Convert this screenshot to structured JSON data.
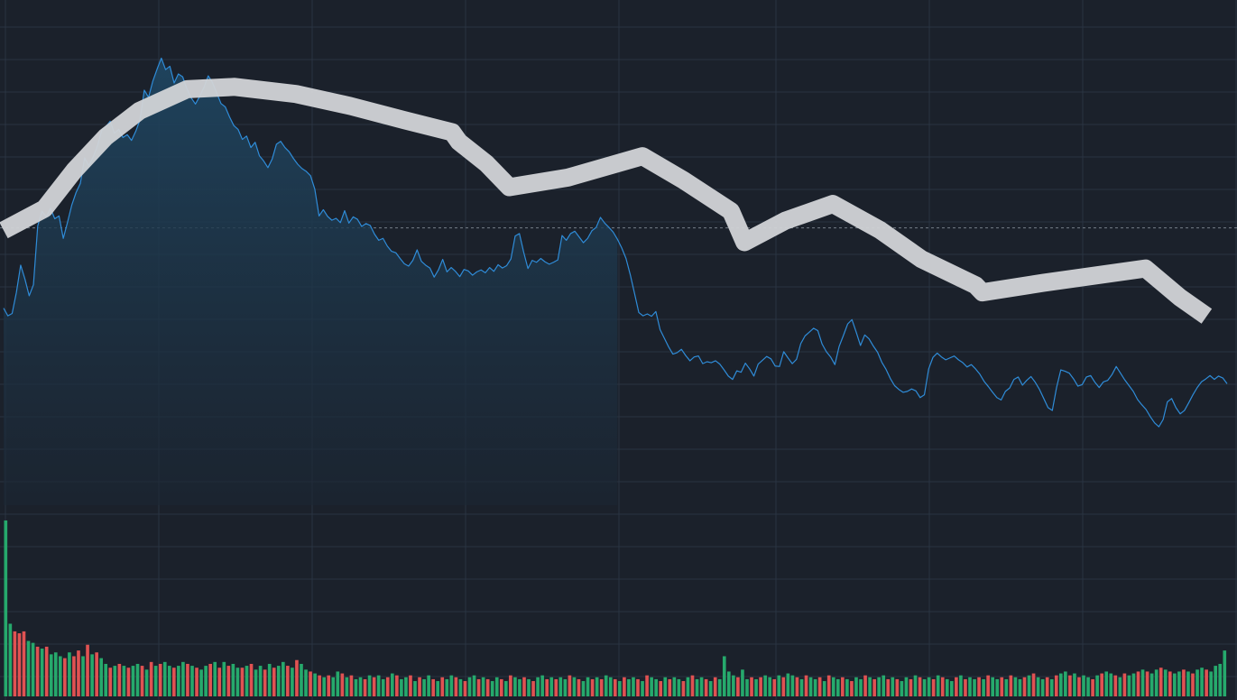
{
  "chart_data": {
    "type": "area",
    "title": "",
    "xlabel": "",
    "ylabel": "",
    "grid": true,
    "legend": "none",
    "ylim": [
      0,
      100
    ],
    "reference_line": 58,
    "colors": {
      "background": "#1b212b",
      "grid": "#2a3441",
      "line": "#2f8cd8",
      "area_top": "#1f4560",
      "area_bottom": "#1b2633",
      "up_bar": "#26a96c",
      "down_bar": "#e05252",
      "reference": "#9aa4af",
      "overlay_stroke": "#d2d4d7"
    },
    "series": [
      {
        "values": [
          41.2,
          39.6,
          40.1,
          44.5,
          50.2,
          47.3,
          43.8,
          46.1,
          58.4,
          61.5,
          60.3,
          62.1,
          59.9,
          60.5,
          55.8,
          59.2,
          62.8,
          65.4,
          67.3,
          72.6,
          71.0,
          72.8,
          75.1,
          78.4,
          79.2,
          80.3,
          77.8,
          78.6,
          76.9,
          77.5,
          76.3,
          78.2,
          80.6,
          86.8,
          85.3,
          88.7,
          91.2,
          93.5,
          91.1,
          91.8,
          88.3,
          90.2,
          89.6,
          87.1,
          85.2,
          83.9,
          85.5,
          87.4,
          89.8,
          88.4,
          86.2,
          84.0,
          83.3,
          81.2,
          79.4,
          78.6,
          76.5,
          77.2,
          74.8,
          75.9,
          73.1,
          72.0,
          70.6,
          72.4,
          75.5,
          76.1,
          74.8,
          73.9,
          72.5,
          71.3,
          70.4,
          69.8,
          68.9,
          66.1,
          60.5,
          61.8,
          60.4,
          59.6,
          60.0,
          59.1,
          61.6,
          59.0,
          60.3,
          59.8,
          58.3,
          58.9,
          58.5,
          56.7,
          55.4,
          55.8,
          54.2,
          53.1,
          52.8,
          51.6,
          50.5,
          50.0,
          51.2,
          53.4,
          51.0,
          50.2,
          49.6,
          47.7,
          49.2,
          51.4,
          48.8,
          49.7,
          48.9,
          47.8,
          49.3,
          49.0,
          48.1,
          48.8,
          49.2,
          48.6,
          49.7,
          48.9,
          50.3,
          49.6,
          50.1,
          51.5,
          56.3,
          56.8,
          52.9,
          49.5,
          51.2,
          50.8,
          51.6,
          50.9,
          50.4,
          50.8,
          51.3,
          56.4,
          55.4,
          56.8,
          57.3,
          56.1,
          54.9,
          55.8,
          57.4,
          58.1,
          60.2,
          59.0,
          58.1,
          57.1,
          55.6,
          53.8,
          51.6,
          48.2,
          44.3,
          40.3,
          39.6,
          40.0,
          39.5,
          40.5,
          36.7,
          34.9,
          33.1,
          31.6,
          31.9,
          32.6,
          31.3,
          30.2,
          31.0,
          31.2,
          29.6,
          30.0,
          29.8,
          30.2,
          29.5,
          28.3,
          27.0,
          26.3,
          28.1,
          27.8,
          29.7,
          28.5,
          27.0,
          29.5,
          30.3,
          31.1,
          30.6,
          29.1,
          29.0,
          32.1,
          30.8,
          29.6,
          30.5,
          33.8,
          35.4,
          36.2,
          37.0,
          36.5,
          33.7,
          32.1,
          31.0,
          29.4,
          33.2,
          35.5,
          37.9,
          38.8,
          36.2,
          33.4,
          35.6,
          34.8,
          33.3,
          32.0,
          29.9,
          28.4,
          26.5,
          25.0,
          24.2,
          23.6,
          23.8,
          24.3,
          23.9,
          22.5,
          23.1,
          28.5,
          30.9,
          31.8,
          31.0,
          30.4,
          30.8,
          31.2,
          30.4,
          29.8,
          28.9,
          29.4,
          28.5,
          27.4,
          25.9,
          24.8,
          23.6,
          22.5,
          22.0,
          23.8,
          24.5,
          26.3,
          26.8,
          25.1,
          26.1,
          26.9,
          25.7,
          24.2,
          22.3,
          20.4,
          19.8,
          24.6,
          28.3,
          28.0,
          27.6,
          26.4,
          24.9,
          25.2,
          26.8,
          27.1,
          25.7,
          24.6,
          25.8,
          26.1,
          27.3,
          29.0,
          27.6,
          26.2,
          25.0,
          23.8,
          22.1,
          21.0,
          20.0,
          18.5,
          17.2,
          16.4,
          17.9,
          21.6,
          22.3,
          20.4,
          19.1,
          19.8,
          21.4,
          23.1,
          24.6,
          25.8,
          26.4,
          27.1,
          26.3,
          27.0,
          26.6,
          25.4
        ]
      }
    ],
    "volume": {
      "values": [
        92,
        38,
        34,
        33,
        34,
        29,
        28,
        26,
        25,
        26,
        22,
        23,
        21,
        20,
        23,
        21,
        24,
        21,
        27,
        22,
        23,
        20,
        17,
        15,
        16,
        17,
        16,
        15,
        16,
        17,
        16,
        14,
        18,
        16,
        17,
        18,
        16,
        15,
        16,
        18,
        17,
        16,
        15,
        14,
        16,
        17,
        18,
        15,
        18,
        16,
        17,
        15,
        15,
        16,
        17,
        14,
        16,
        14,
        17,
        15,
        16,
        18,
        16,
        15,
        19,
        17,
        14,
        13,
        12,
        11,
        10,
        11,
        10,
        13,
        12,
        10,
        11,
        9,
        10,
        9,
        11,
        10,
        11,
        9,
        10,
        12,
        11,
        9,
        10,
        11,
        8,
        10,
        9,
        11,
        9,
        8,
        10,
        9,
        11,
        10,
        9,
        8,
        10,
        11,
        9,
        10,
        9,
        8,
        10,
        9,
        8,
        11,
        10,
        9,
        10,
        9,
        8,
        10,
        11,
        9,
        10,
        9,
        10,
        9,
        11,
        10,
        9,
        8,
        10,
        9,
        10,
        9,
        11,
        10,
        9,
        8,
        10,
        9,
        10,
        9,
        8,
        11,
        10,
        9,
        8,
        10,
        9,
        10,
        9,
        8,
        10,
        11,
        9,
        10,
        9,
        8,
        10,
        9,
        21,
        13,
        11,
        10,
        14,
        9,
        10,
        9,
        10,
        11,
        10,
        9,
        11,
        10,
        12,
        11,
        10,
        9,
        11,
        10,
        9,
        10,
        8,
        11,
        10,
        9,
        10,
        9,
        8,
        10,
        9,
        11,
        10,
        9,
        10,
        11,
        9,
        10,
        9,
        8,
        10,
        9,
        11,
        10,
        9,
        10,
        9,
        11,
        10,
        9,
        8,
        10,
        11,
        9,
        10,
        9,
        10,
        9,
        11,
        10,
        9,
        10,
        9,
        11,
        10,
        9,
        10,
        11,
        12,
        10,
        9,
        10,
        9,
        11,
        12,
        13,
        11,
        12,
        10,
        11,
        10,
        9,
        11,
        12,
        13,
        12,
        11,
        10,
        12,
        11,
        12,
        13,
        14,
        13,
        12,
        14,
        15,
        14,
        13,
        12,
        13,
        14,
        13,
        12,
        14,
        15,
        14,
        13,
        16,
        17,
        24
      ],
      "direction": [
        "u",
        "u",
        "d",
        "d",
        "d",
        "u",
        "u",
        "d",
        "u",
        "d",
        "u",
        "u",
        "u",
        "d",
        "u",
        "d",
        "d",
        "u",
        "d",
        "u",
        "d",
        "u",
        "u",
        "d",
        "u",
        "d",
        "u",
        "d",
        "u",
        "u",
        "d",
        "u",
        "d",
        "u",
        "d",
        "u",
        "u",
        "d",
        "u",
        "u",
        "d",
        "u",
        "d",
        "u",
        "u",
        "d",
        "u",
        "d",
        "u",
        "d",
        "u",
        "u",
        "d",
        "u",
        "d",
        "u",
        "u",
        "d",
        "u",
        "d",
        "u",
        "u",
        "d",
        "u",
        "d",
        "u",
        "u",
        "d",
        "u",
        "d",
        "u",
        "d",
        "u",
        "u",
        "d",
        "u",
        "d",
        "u",
        "u",
        "d",
        "u",
        "d",
        "u",
        "u",
        "d",
        "u",
        "d",
        "u",
        "u",
        "d",
        "u",
        "d",
        "u",
        "u",
        "d",
        "u",
        "d",
        "u",
        "u",
        "d",
        "u",
        "d",
        "u",
        "u",
        "d",
        "u",
        "d",
        "u",
        "u",
        "d",
        "u",
        "d",
        "u",
        "u",
        "d",
        "u",
        "d",
        "u",
        "u",
        "d",
        "u",
        "d",
        "u",
        "u",
        "d",
        "u",
        "d",
        "u",
        "u",
        "d",
        "u",
        "d",
        "u",
        "u",
        "d",
        "u",
        "d",
        "u",
        "u",
        "d",
        "u",
        "d",
        "u",
        "u",
        "d",
        "u",
        "d",
        "u",
        "u",
        "d",
        "u",
        "d",
        "u",
        "u",
        "d",
        "u",
        "d",
        "u",
        "u",
        "u",
        "u",
        "d",
        "u",
        "u",
        "d",
        "u",
        "d",
        "u",
        "u",
        "d",
        "u",
        "d",
        "u",
        "u",
        "d",
        "u",
        "d",
        "u",
        "u",
        "d",
        "u",
        "d",
        "u",
        "u",
        "d",
        "u",
        "d",
        "u",
        "u",
        "d",
        "u",
        "d",
        "u",
        "u",
        "d",
        "u",
        "d",
        "u",
        "u",
        "d",
        "u",
        "d",
        "u",
        "u",
        "d",
        "u",
        "d",
        "u",
        "u",
        "d",
        "u",
        "d",
        "u",
        "u",
        "d",
        "u",
        "d",
        "u",
        "u",
        "d",
        "u",
        "d",
        "u",
        "u",
        "d",
        "u",
        "d",
        "u",
        "u",
        "d",
        "u",
        "d",
        "u",
        "u",
        "d",
        "u",
        "d",
        "u",
        "u",
        "d",
        "u",
        "d",
        "u",
        "u",
        "d",
        "u",
        "d",
        "u",
        "u",
        "d",
        "u",
        "d",
        "u",
        "u",
        "d",
        "u",
        "d",
        "u",
        "u",
        "d",
        "u",
        "d",
        "u",
        "u",
        "d",
        "u",
        "u",
        "u",
        "u",
        "d",
        "u",
        "d",
        "u",
        "u",
        "u",
        "d",
        "u",
        "u"
      ],
      "ylim": [
        0,
        100
      ]
    },
    "overlay_path": [
      [
        0.0,
        57.5
      ],
      [
        3.0,
        62.0
      ],
      [
        5.2,
        70.0
      ],
      [
        7.5,
        77.0
      ],
      [
        10.0,
        82.5
      ],
      [
        13.5,
        87.0
      ],
      [
        17.0,
        87.5
      ],
      [
        21.5,
        86.0
      ],
      [
        25.5,
        83.5
      ],
      [
        29.5,
        80.5
      ],
      [
        33.0,
        78.0
      ],
      [
        33.5,
        76.0
      ],
      [
        35.5,
        71.5
      ],
      [
        37.2,
        66.5
      ],
      [
        41.5,
        68.5
      ],
      [
        47.0,
        73.0
      ],
      [
        50.0,
        68.0
      ],
      [
        53.5,
        61.5
      ],
      [
        54.5,
        55.0
      ],
      [
        57.5,
        59.5
      ],
      [
        61.0,
        63.0
      ],
      [
        64.5,
        57.5
      ],
      [
        67.5,
        51.5
      ],
      [
        71.5,
        46.0
      ],
      [
        72.0,
        44.5
      ],
      [
        76.5,
        46.5
      ],
      [
        84.0,
        49.5
      ],
      [
        86.5,
        43.5
      ],
      [
        88.5,
        39.5
      ]
    ]
  }
}
